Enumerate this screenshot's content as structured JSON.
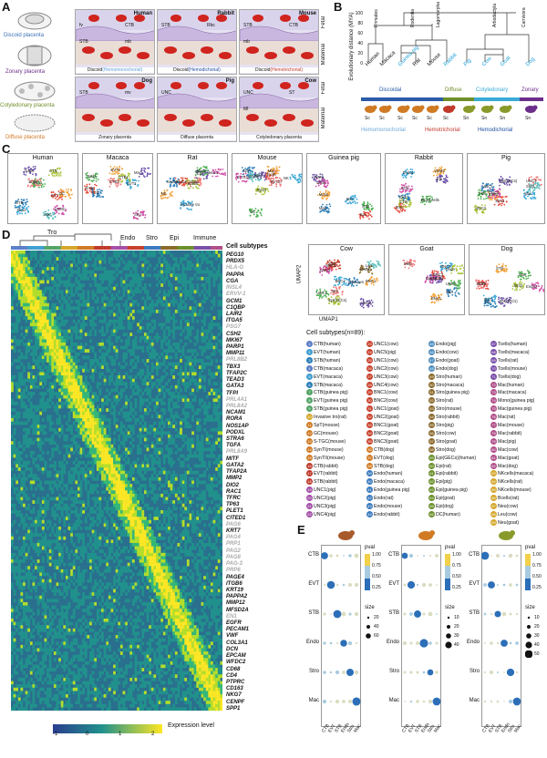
{
  "panels": {
    "A": "A",
    "B": "B",
    "C": "C",
    "D": "D",
    "E": "E"
  },
  "panelA": {
    "types": [
      {
        "label": "Discoid placenta",
        "color": "#3a6fb5"
      },
      {
        "label": "Zonary placenta",
        "color": "#6b2e8a"
      },
      {
        "label": "Cotyledonary placenta",
        "color": "#6f8f2a"
      },
      {
        "label": "Diffuse placenta",
        "color": "#d07a24"
      }
    ],
    "cards": [
      {
        "species": "Human",
        "caption_main": "Discoid",
        "caption_sub": "Hemomonochorial",
        "sub_color": "#5aa0d8",
        "labels": [
          "fv",
          "CTB",
          "STB",
          "mb"
        ]
      },
      {
        "species": "Rabbit",
        "caption_main": "Discoid",
        "caption_sub": "Hemodichorial",
        "sub_color": "#1f4fa0",
        "labels": [
          "STB",
          "Rbc"
        ]
      },
      {
        "species": "Mouse",
        "caption_main": "Discoid",
        "caption_sub": "Hemotrichorial",
        "sub_color": "#c0392b",
        "labels": [
          "STB",
          "CTB",
          "mb"
        ]
      },
      {
        "species": "Dog",
        "caption_main": "Zonary placenta",
        "caption_sub": "",
        "sub_color": "#000",
        "labels": [
          "STB",
          "mv"
        ]
      },
      {
        "species": "Pig",
        "caption_main": "Diffuse placenta",
        "caption_sub": "",
        "sub_color": "#000",
        "labels": [
          "UNC"
        ]
      },
      {
        "species": "Cow",
        "caption_main": "Cotyledonary placenta",
        "caption_sub": "",
        "sub_color": "#000",
        "labels": [
          "UNC",
          "ST",
          "MI"
        ]
      }
    ],
    "side_fetal": "Fetal",
    "side_maternal": "Maternal"
  },
  "panelB": {
    "ylabel": "Evolutionary distance (MYA)",
    "yticks": [
      "0",
      "20",
      "40",
      "60",
      "80",
      "100"
    ],
    "clades": [
      "Primates",
      "Rodentia",
      "Lagomorpha",
      "Artiodactyla",
      "Carnivora"
    ],
    "species": [
      {
        "name": "Human",
        "color": "#111"
      },
      {
        "name": "Macaca",
        "color": "#111"
      },
      {
        "name": "Guinea pig",
        "color": "#1fa0d8"
      },
      {
        "name": "Rat",
        "color": "#111"
      },
      {
        "name": "Mouse",
        "color": "#111"
      },
      {
        "name": "Rabbit",
        "color": "#1fa0d8"
      },
      {
        "name": "Pig",
        "color": "#1fa0d8"
      },
      {
        "name": "Cow",
        "color": "#1fa0d8"
      },
      {
        "name": "Goat",
        "color": "#1fa0d8"
      },
      {
        "name": "Dog",
        "color": "#1fa0d8"
      }
    ],
    "type_labels": [
      {
        "text": "Discoidal",
        "color": "#2a5ca8"
      },
      {
        "text": "Diffuse",
        "color": "#6f8f2a"
      },
      {
        "text": "Cotyledonary",
        "color": "#3aaad8"
      },
      {
        "text": "Zonary",
        "color": "#6b2e8a"
      }
    ],
    "animal_tags": [
      "Sc",
      "Sc",
      "Sc",
      "Sc",
      "Sc",
      "Sc",
      "Sn",
      "Sn",
      "Sn",
      "Sn"
    ],
    "chorial": [
      {
        "text": "Hemomonochorial",
        "color": "#6fa8d8"
      },
      {
        "text": "Hemotrichorial",
        "color": "#c0392b"
      },
      {
        "text": "Hemodichorial",
        "color": "#1f4fa0"
      }
    ]
  },
  "panelC": {
    "plots_row1": [
      {
        "title": "Human",
        "labels": [
          "EVT",
          "DC",
          "Stro2",
          "Tcells",
          "Stro1",
          "VSMC",
          "STB",
          "CTB",
          "Endo",
          "Mac"
        ]
      },
      {
        "title": "Macaca",
        "labels": [
          "Endo",
          "EVT2",
          "EVT1",
          "Mac",
          "Tcells",
          "Stro",
          "STB",
          "CTB1",
          "CTB2"
        ]
      },
      {
        "title": "Rat",
        "labels": [
          "Endo2",
          "NK",
          "Invasive tro",
          "Epi",
          "Mac2",
          "Mac1",
          "Endo1",
          "Bcells",
          "Stro1"
        ]
      },
      {
        "title": "Mouse",
        "labels": [
          "Tcells",
          "Mac",
          "NK",
          "Mes",
          "GC",
          "S-TGC",
          "SpT",
          "SynTI",
          "SynTII",
          "Endo"
        ]
      },
      {
        "title": "Guinea pig",
        "labels": [
          "Epi",
          "Mono",
          "Stro",
          "VSMC",
          "STB",
          "Endo",
          "Mac"
        ]
      },
      {
        "title": "Rabbit",
        "labels": [
          "Stro",
          "VSMC",
          "Endo1",
          "Epi",
          "Blood cells",
          "STB",
          "EVT",
          "CTB"
        ]
      },
      {
        "title": "Pig",
        "labels": [
          "Stro2",
          "SPP1",
          "Mac",
          "Epi(LECs)",
          "Fibs",
          "UNC4",
          "UNC1",
          "UNC3",
          "UNC2",
          "Stro1"
        ]
      }
    ],
    "plots_row2": [
      {
        "title": "Cow",
        "labels": [
          "BNC3",
          "BNC1",
          "BNC2",
          "UNC4",
          "UNC1",
          "UNC3",
          "Unknown",
          "Epi(GECs)",
          "Stro",
          "Leu",
          "Endo",
          "SMC"
        ]
      },
      {
        "title": "Goat",
        "labels": [
          "BNC3",
          "BNC1",
          "BNC2",
          "UNC1",
          "UNC2",
          "Epi(LECs)",
          "Stro",
          "Endo",
          "SMC"
        ]
      },
      {
        "title": "Dog",
        "labels": [
          "CTB",
          "STB",
          "EVT",
          "Epi(GECs)",
          "Mac",
          "Endo2",
          "Fib",
          "Stro2",
          "Stro1"
        ]
      }
    ],
    "umap1": "UMAP1",
    "umap2": "UMAP2"
  },
  "panelD": {
    "groups": [
      "Tro",
      "Endo",
      "Stro",
      "Epi",
      "Immune"
    ],
    "cell_subtypes_title": "Cell subtypes",
    "genes": [
      {
        "g": "PEG10",
        "grey": false
      },
      {
        "g": "PRDX5",
        "grey": false
      },
      {
        "g": "HLA-G",
        "grey": true
      },
      {
        "g": "PAPPA",
        "grey": false
      },
      {
        "g": "CGA",
        "grey": false
      },
      {
        "g": "INSL4",
        "grey": true
      },
      {
        "g": "ERVV-1",
        "grey": true
      },
      {
        "g": "GCM1",
        "grey": false
      },
      {
        "g": "C1QBP",
        "grey": false
      },
      {
        "g": "LAIR2",
        "grey": false
      },
      {
        "g": "ITGA5",
        "grey": false
      },
      {
        "g": "PSG7",
        "grey": true
      },
      {
        "g": "CSH2",
        "grey": false
      },
      {
        "g": "MKI67",
        "grey": false
      },
      {
        "g": "PARP1",
        "grey": false
      },
      {
        "g": "MMP11",
        "grey": false
      },
      {
        "g": "PRL8B2",
        "grey": true
      },
      {
        "g": "TBX3",
        "grey": false
      },
      {
        "g": "TFAP2C",
        "grey": false
      },
      {
        "g": "TEAD3",
        "grey": false
      },
      {
        "g": "GATA3",
        "grey": false
      },
      {
        "g": "TFPI",
        "grey": false
      },
      {
        "g": "PRL4A1",
        "grey": true
      },
      {
        "g": "PRL8A2",
        "grey": true
      },
      {
        "g": "NCAM1",
        "grey": false
      },
      {
        "g": "RORA",
        "grey": false
      },
      {
        "g": "NOS1AP",
        "grey": false
      },
      {
        "g": "PODXL",
        "grey": false
      },
      {
        "g": "STRA6",
        "grey": false
      },
      {
        "g": "TGFA",
        "grey": false
      },
      {
        "g": "PRL8A9",
        "grey": true
      },
      {
        "g": "MITF",
        "grey": false
      },
      {
        "g": "GATA2",
        "grey": false
      },
      {
        "g": "TFAP2A",
        "grey": false
      },
      {
        "g": "MMP2",
        "grey": false
      },
      {
        "g": "DIO2",
        "grey": false
      },
      {
        "g": "RAC1",
        "grey": false
      },
      {
        "g": "TFRC",
        "grey": false
      },
      {
        "g": "TP63",
        "grey": false
      },
      {
        "g": "PLET1",
        "grey": false
      },
      {
        "g": "CITED1",
        "grey": false
      },
      {
        "g": "PAG6",
        "grey": true
      },
      {
        "g": "KRT7",
        "grey": false
      },
      {
        "g": "PAG4",
        "grey": true
      },
      {
        "g": "PRP1",
        "grey": true
      },
      {
        "g": "PAG2",
        "grey": true
      },
      {
        "g": "PAG8",
        "grey": true
      },
      {
        "g": "PAG-3",
        "grey": true
      },
      {
        "g": "PRP6",
        "grey": true
      },
      {
        "g": "PAGE4",
        "grey": false
      },
      {
        "g": "ITGB6",
        "grey": false
      },
      {
        "g": "KRT19",
        "grey": false
      },
      {
        "g": "PAPPA2",
        "grey": false
      },
      {
        "g": "MMP12",
        "grey": false
      },
      {
        "g": "MFSD2A",
        "grey": false
      },
      {
        "g": "EN1",
        "grey": true
      },
      {
        "g": "EGFR",
        "grey": false
      },
      {
        "g": "PECAM1",
        "grey": false
      },
      {
        "g": "VWF",
        "grey": false
      },
      {
        "g": "COL3A1",
        "grey": false
      },
      {
        "g": "DCN",
        "grey": false
      },
      {
        "g": "EPCAM",
        "grey": false
      },
      {
        "g": "WFDC2",
        "grey": false
      },
      {
        "g": "CD68",
        "grey": false
      },
      {
        "g": "CD4",
        "grey": false
      },
      {
        "g": "PTPRC",
        "grey": false
      },
      {
        "g": "CD163",
        "grey": false
      },
      {
        "g": "NKG7",
        "grey": false
      },
      {
        "g": "CENPF",
        "grey": false
      },
      {
        "g": "SPP1",
        "grey": false
      }
    ],
    "legend_ticks": [
      "-1",
      "0",
      "1",
      "2"
    ],
    "legend_label": "Expression level"
  },
  "cellSubtypes": {
    "title": "Cell subtypes(n=89):",
    "columns": [
      [
        [
          "1",
          "CTB(human)",
          "#5c7fc7"
        ],
        [
          "2",
          "EVT(human)",
          "#3f9fd0"
        ],
        [
          "3",
          "STB(human)",
          "#2c7fb8"
        ],
        [
          "4",
          "CTB(macaca)",
          "#5c7fc7"
        ],
        [
          "5",
          "EVT(macaca)",
          "#3f9fd0"
        ],
        [
          "6",
          "STB(macaca)",
          "#2c7fb8"
        ],
        [
          "7",
          "CTB(guinea pig)",
          "#53a567"
        ],
        [
          "8",
          "EVT(guinea pig)",
          "#53a567"
        ],
        [
          "9",
          "STB(guinea pig)",
          "#53a567"
        ],
        [
          "10",
          "Invasive tro(rat)",
          "#d4a62a"
        ],
        [
          "11",
          "SpT(mouse)",
          "#d07a24"
        ],
        [
          "12",
          "GC(mouse)",
          "#d07a24"
        ],
        [
          "13",
          "S-TGC(mouse)",
          "#d07a24"
        ],
        [
          "14",
          "SynTI(mouse)",
          "#d07a24"
        ],
        [
          "15",
          "SynTII(mouse)",
          "#d07a24"
        ],
        [
          "16",
          "CTB(rabbit)",
          "#c0392b"
        ],
        [
          "17",
          "EVT(rabbit)",
          "#c0392b"
        ],
        [
          "18",
          "STB(rabbit)",
          "#c0392b"
        ],
        [
          "19",
          "UNC1(pig)",
          "#a34fa8"
        ],
        [
          "20",
          "UNC2(pig)",
          "#a34fa8"
        ],
        [
          "21",
          "UNC3(pig)",
          "#a34fa8"
        ],
        [
          "22",
          "UNC4(pig)",
          "#a34fa8"
        ]
      ],
      [
        [
          "23",
          "UNC1(cow)",
          "#c7402b"
        ],
        [
          "24",
          "UNC5(pig)",
          "#c7402b"
        ],
        [
          "25",
          "UNC1(cow)",
          "#c7402b"
        ],
        [
          "26",
          "UNC2(cow)",
          "#c7402b"
        ],
        [
          "27",
          "UNC3(cow)",
          "#c7402b"
        ],
        [
          "28",
          "UNC4(cow)",
          "#c7402b"
        ],
        [
          "29",
          "BNC1(cow)",
          "#c7402b"
        ],
        [
          "30",
          "BNC2(cow)",
          "#c7402b"
        ],
        [
          "31",
          "UNC1(goat)",
          "#c7402b"
        ],
        [
          "32",
          "UNC2(goat)",
          "#c7402b"
        ],
        [
          "33",
          "BNC1(goat)",
          "#c7402b"
        ],
        [
          "34",
          "BNC2(goat)",
          "#c7402b"
        ],
        [
          "35",
          "BNC3(goat)",
          "#c7402b"
        ],
        [
          "36",
          "CTB(dog)",
          "#d07a24"
        ],
        [
          "37",
          "EVT(dog)",
          "#d07a24"
        ],
        [
          "38",
          "STB(dog)",
          "#d07a24"
        ],
        [
          "39",
          "Endo(human)",
          "#3a7bbf"
        ],
        [
          "40",
          "Endo(macaca)",
          "#3a7bbf"
        ],
        [
          "41",
          "Endo(guinea pig)",
          "#3a7bbf"
        ],
        [
          "42",
          "Endo(rat)",
          "#3a7bbf"
        ],
        [
          "43",
          "Endo(mouse)",
          "#3a7bbf"
        ],
        [
          "44",
          "Endo(rabbit)",
          "#3a7bbf"
        ]
      ],
      [
        [
          "45",
          "Endo(pig)",
          "#4f8fbf"
        ],
        [
          "46",
          "Endo(cow)",
          "#4f8fbf"
        ],
        [
          "47",
          "Endo(goat)",
          "#4f8fbf"
        ],
        [
          "48",
          "Endo(dog)",
          "#4f8fbf"
        ],
        [
          "49",
          "Stro(human)",
          "#8a6a2b"
        ],
        [
          "50",
          "Stro(macaca)",
          "#8a6a2b"
        ],
        [
          "51",
          "Stro(guinea pig)",
          "#8a6a2b"
        ],
        [
          "52",
          "Stro(rat)",
          "#8a6a2b"
        ],
        [
          "53",
          "Stro(mouse)",
          "#8a6a2b"
        ],
        [
          "54",
          "Stro(rabbit)",
          "#8a6a2b"
        ],
        [
          "55",
          "Stro(pig)",
          "#8a6a2b"
        ],
        [
          "56",
          "Stro(cow)",
          "#8a6a2b"
        ],
        [
          "57",
          "Stro(goat)",
          "#8a6a2b"
        ],
        [
          "58",
          "Stro(dog)",
          "#8a6a2b"
        ],
        [
          "59",
          "Epi(GECs)(human)",
          "#6a8f2a"
        ],
        [
          "60",
          "Epi(rat)",
          "#6a8f2a"
        ],
        [
          "61",
          "Epi(rabbit)",
          "#6a8f2a"
        ],
        [
          "62",
          "Epi(pig)",
          "#6a8f2a"
        ],
        [
          "63",
          "Epi(guinea pig)",
          "#6a8f2a"
        ],
        [
          "64",
          "Epi(goat)",
          "#6a8f2a"
        ],
        [
          "65",
          "Epi(dog)",
          "#6a8f2a"
        ],
        [
          "66",
          "DC(human)",
          "#6a8f2a"
        ]
      ],
      [
        [
          "67",
          "Tcells(human)",
          "#7a4fa8"
        ],
        [
          "68",
          "Tcells(macaca)",
          "#7a4fa8"
        ],
        [
          "69",
          "Tcells(rat)",
          "#7a4fa8"
        ],
        [
          "70",
          "Tcells(mouse)",
          "#7a4fa8"
        ],
        [
          "71",
          "Tcells(dog)",
          "#7a4fa8"
        ],
        [
          "72",
          "Mac(human)",
          "#b04f8a"
        ],
        [
          "73",
          "Mac(macaca)",
          "#b04f8a"
        ],
        [
          "74",
          "Mono(guinea pig)",
          "#b04f8a"
        ],
        [
          "75",
          "Mac(guinea pig)",
          "#b04f8a"
        ],
        [
          "76",
          "Mac(rat)",
          "#b04f8a"
        ],
        [
          "77",
          "Mac(mouse)",
          "#b04f8a"
        ],
        [
          "78",
          "Mac(rabbit)",
          "#b04f8a"
        ],
        [
          "79",
          "Mac(pig)",
          "#b04f8a"
        ],
        [
          "80",
          "Mac(cow)",
          "#b04f8a"
        ],
        [
          "81",
          "Mac(goat)",
          "#b04f8a"
        ],
        [
          "82",
          "Mac(dog)",
          "#b04f8a"
        ],
        [
          "83",
          "NKcells(macaca)",
          "#d4a62a"
        ],
        [
          "84",
          "NKcells(rat)",
          "#d4a62a"
        ],
        [
          "85",
          "NKcells(mouse)",
          "#d4a62a"
        ],
        [
          "86",
          "Bcells(rat)",
          "#d4a62a"
        ],
        [
          "87",
          "Neu(cow)",
          "#d4a62a"
        ],
        [
          "88",
          "Leu(cow)",
          "#d4a62a"
        ],
        [
          "89",
          "Neu(goat)",
          "#d4a62a"
        ]
      ]
    ]
  },
  "panelE": {
    "rows": [
      "CTB",
      "EVT",
      "STB",
      "Endo",
      "Stro",
      "Mac"
    ],
    "cols": [
      "CTB",
      "EVT",
      "STB",
      "Endo",
      "Stro",
      "Mac"
    ],
    "pval_label": "pval",
    "pval_ticks": [
      "1.00",
      "0.75",
      "0.50",
      "0.25"
    ],
    "size_label": "size",
    "size_ticks_1": [
      "20",
      "40",
      "60"
    ],
    "size_ticks_2": [
      "10",
      "20",
      "30",
      "40"
    ],
    "size_ticks_3": [
      "10",
      "20",
      "30",
      "40",
      "50"
    ]
  }
}
